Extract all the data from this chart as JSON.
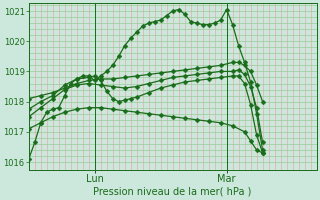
{
  "xlabel": "Pression niveau de la mer( hPa )",
  "ylim": [
    1015.75,
    1021.25
  ],
  "xlim": [
    0,
    48
  ],
  "yticks": [
    1016,
    1017,
    1018,
    1019,
    1020,
    1021
  ],
  "lun_x": 11,
  "mar_x": 33,
  "bg_color": "#cce8dc",
  "grid_color_v": "#e8aaaa",
  "grid_color_h": "#99cc99",
  "line_color": "#1a6b1a",
  "marker": "D",
  "markersize": 2.5,
  "series": [
    [
      0,
      1016.1,
      1,
      1016.65,
      2,
      1017.3,
      3,
      1017.65,
      4,
      1017.75,
      5,
      1017.8,
      6,
      1018.2,
      7,
      1018.6,
      8,
      1018.75,
      9,
      1018.85,
      10,
      1018.85,
      11,
      1018.7,
      12,
      1018.85,
      13,
      1019.0,
      14,
      1019.2,
      15,
      1019.5,
      16,
      1019.85,
      17,
      1020.1,
      18,
      1020.3,
      19,
      1020.5,
      20,
      1020.6,
      21,
      1020.65,
      22,
      1020.7,
      23,
      1020.85,
      24,
      1021.0,
      25,
      1021.05,
      26,
      1020.9,
      27,
      1020.65,
      28,
      1020.6,
      29,
      1020.55,
      30,
      1020.55,
      31,
      1020.6,
      32,
      1020.7,
      33,
      1021.05,
      34,
      1020.55,
      35,
      1019.85,
      36,
      1019.3,
      37,
      1018.65,
      38,
      1017.6,
      39,
      1016.4
    ],
    [
      0,
      1017.5,
      2,
      1017.8,
      4,
      1018.1,
      6,
      1018.4,
      8,
      1018.55,
      10,
      1018.6,
      12,
      1018.55,
      14,
      1018.5,
      16,
      1018.45,
      18,
      1018.5,
      20,
      1018.6,
      22,
      1018.7,
      24,
      1018.8,
      26,
      1018.85,
      28,
      1018.9,
      30,
      1018.95,
      32,
      1019.0,
      34,
      1019.0,
      35,
      1019.05,
      36,
      1018.9,
      37,
      1018.5,
      38,
      1017.8,
      39,
      1016.65
    ],
    [
      0,
      1018.1,
      2,
      1018.2,
      4,
      1018.3,
      6,
      1018.45,
      8,
      1018.6,
      10,
      1018.7,
      12,
      1018.75,
      14,
      1018.75,
      16,
      1018.8,
      18,
      1018.85,
      20,
      1018.9,
      22,
      1018.95,
      24,
      1019.0,
      26,
      1019.05,
      28,
      1019.1,
      30,
      1019.15,
      32,
      1019.2,
      34,
      1019.3,
      35,
      1019.3,
      36,
      1019.2,
      37,
      1019.0,
      38,
      1018.55,
      39,
      1018.0
    ],
    [
      0,
      1017.75,
      2,
      1018.0,
      4,
      1018.2,
      6,
      1018.55,
      8,
      1018.75,
      10,
      1018.8,
      11,
      1018.85,
      12,
      1018.7,
      13,
      1018.35,
      14,
      1018.1,
      15,
      1018.0,
      16,
      1018.05,
      17,
      1018.1,
      18,
      1018.15,
      20,
      1018.3,
      22,
      1018.45,
      24,
      1018.55,
      26,
      1018.65,
      28,
      1018.7,
      30,
      1018.75,
      32,
      1018.8,
      34,
      1018.85,
      35,
      1018.85,
      36,
      1018.6,
      37,
      1017.9,
      38,
      1016.9,
      39,
      1016.3
    ],
    [
      0,
      1017.1,
      2,
      1017.3,
      4,
      1017.5,
      6,
      1017.65,
      8,
      1017.75,
      10,
      1017.8,
      12,
      1017.8,
      14,
      1017.75,
      16,
      1017.7,
      18,
      1017.65,
      20,
      1017.6,
      22,
      1017.55,
      24,
      1017.5,
      26,
      1017.45,
      28,
      1017.4,
      30,
      1017.35,
      32,
      1017.3,
      34,
      1017.2,
      36,
      1017.0,
      37,
      1016.7,
      38,
      1016.4,
      39,
      1016.3
    ]
  ]
}
